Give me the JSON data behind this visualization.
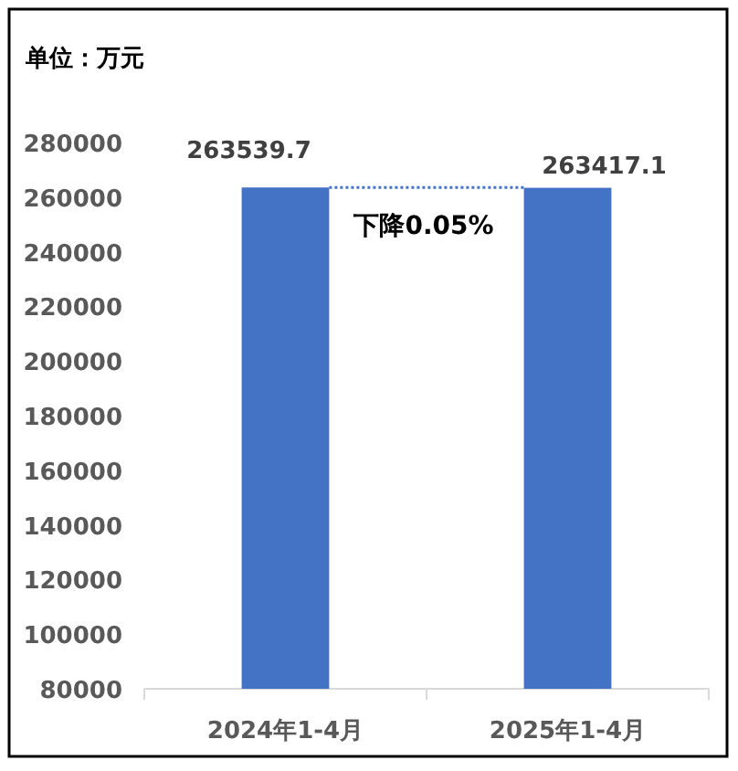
{
  "chart_data": {
    "type": "bar",
    "ylabel": "单位：万元",
    "categories": [
      "2024年1-4月",
      "2025年1-4月"
    ],
    "values": [
      263539.7,
      263417.1
    ],
    "color": "#4472c4",
    "data_labels": true,
    "ylim": [
      80000,
      280000
    ],
    "yticks": [
      80000,
      100000,
      120000,
      140000,
      160000,
      180000,
      200000,
      220000,
      240000,
      260000,
      280000
    ],
    "grid": false,
    "annotations": [
      "下降0.05%"
    ]
  }
}
